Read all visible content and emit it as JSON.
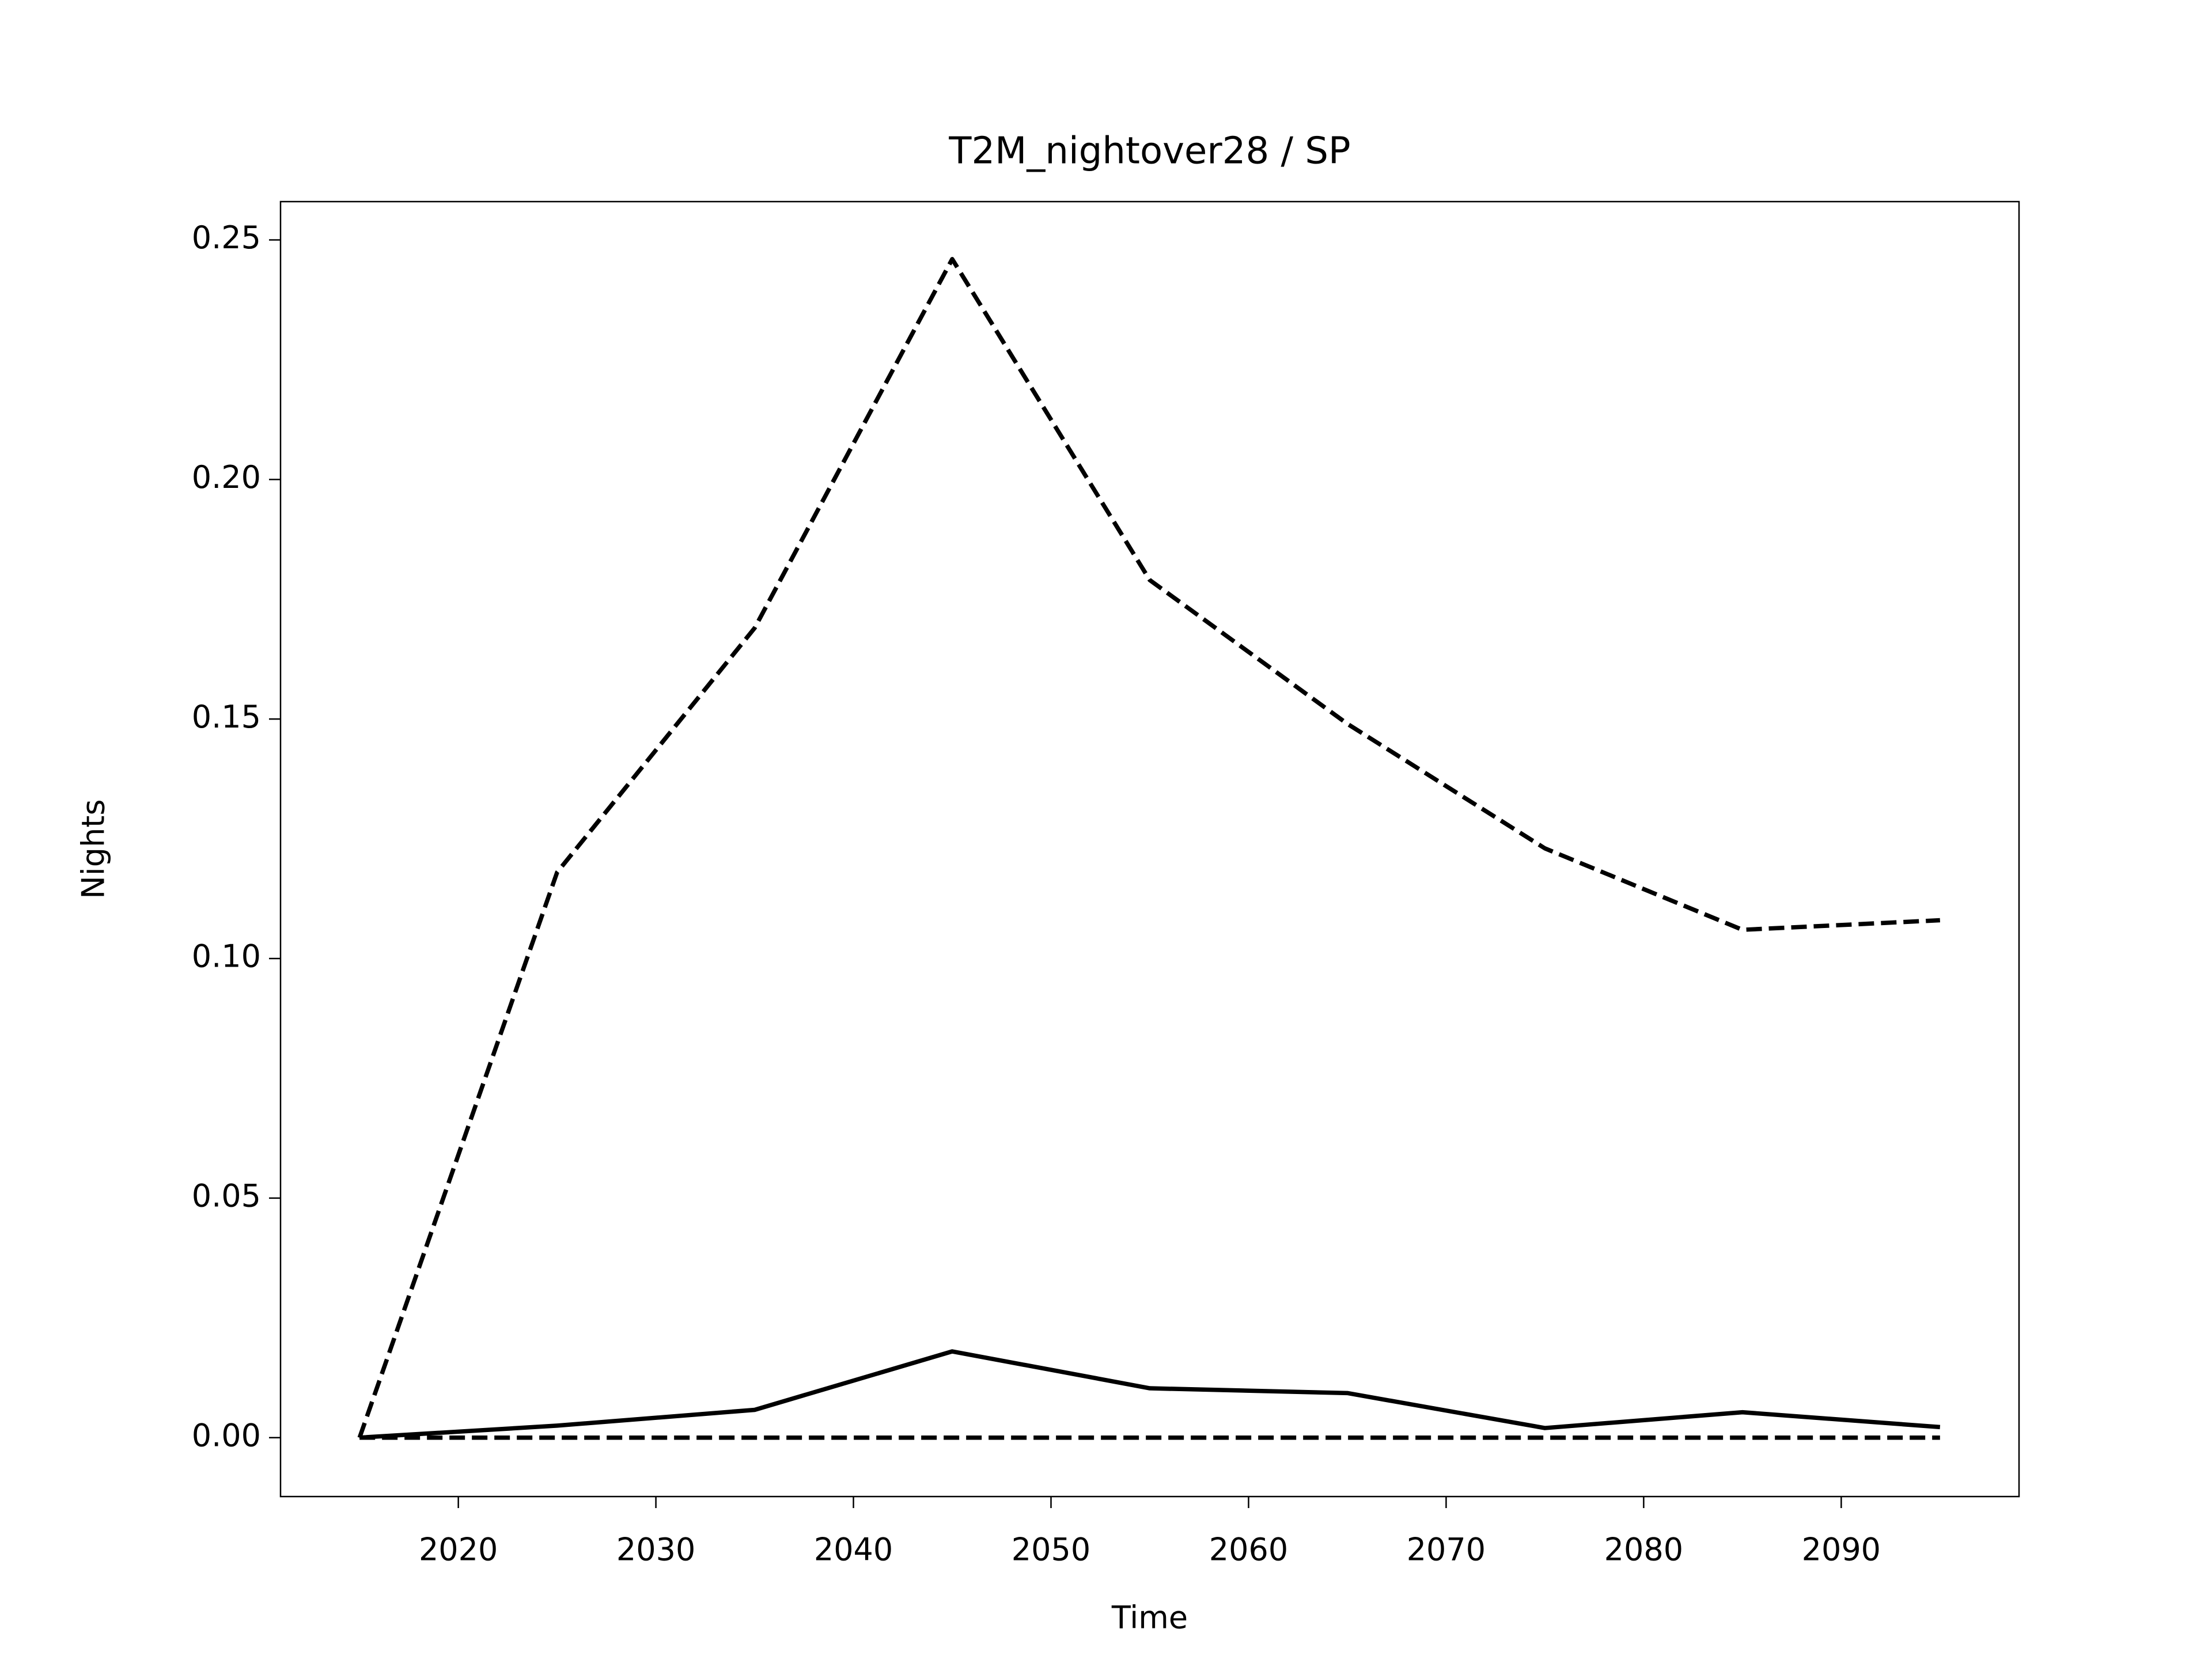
{
  "chart_data": {
    "type": "line",
    "title": "T2M_nightover28 / SP",
    "xlabel": "Time",
    "ylabel": "Nights",
    "x": [
      2015,
      2025,
      2035,
      2045,
      2055,
      2065,
      2075,
      2085,
      2095
    ],
    "series": [
      {
        "color": "#000000",
        "linestyle": "dashed",
        "values": [
          0,
          0.118,
          0.169,
          0.246,
          0.179,
          0.149,
          0.123,
          0.106,
          0.108
        ]
      },
      {
        "color": "#000000",
        "linestyle": "solid",
        "values": [
          0,
          0.0025,
          0.0058,
          0.018,
          0.0103,
          0.0093,
          0.002,
          0.0053,
          0.0022
        ]
      },
      {
        "color": "#000000",
        "linestyle": "dashed",
        "values": [
          0,
          0,
          0,
          0,
          0,
          0,
          0,
          0,
          0
        ]
      }
    ],
    "xlim": [
      2011,
      2099
    ],
    "xticks": [
      2020,
      2030,
      2040,
      2050,
      2060,
      2070,
      2080,
      2090
    ],
    "ylim": [
      -0.0123,
      0.258
    ],
    "yticks": [
      {
        "value": 0,
        "label": "0.00"
      },
      {
        "value": 0.05,
        "label": "0.05"
      },
      {
        "value": 0.1,
        "label": "0.10"
      },
      {
        "value": 0.15,
        "label": "0.15"
      },
      {
        "value": 0.2,
        "label": "0.20"
      },
      {
        "value": 0.25,
        "label": "0.25"
      }
    ],
    "grid": false
  }
}
